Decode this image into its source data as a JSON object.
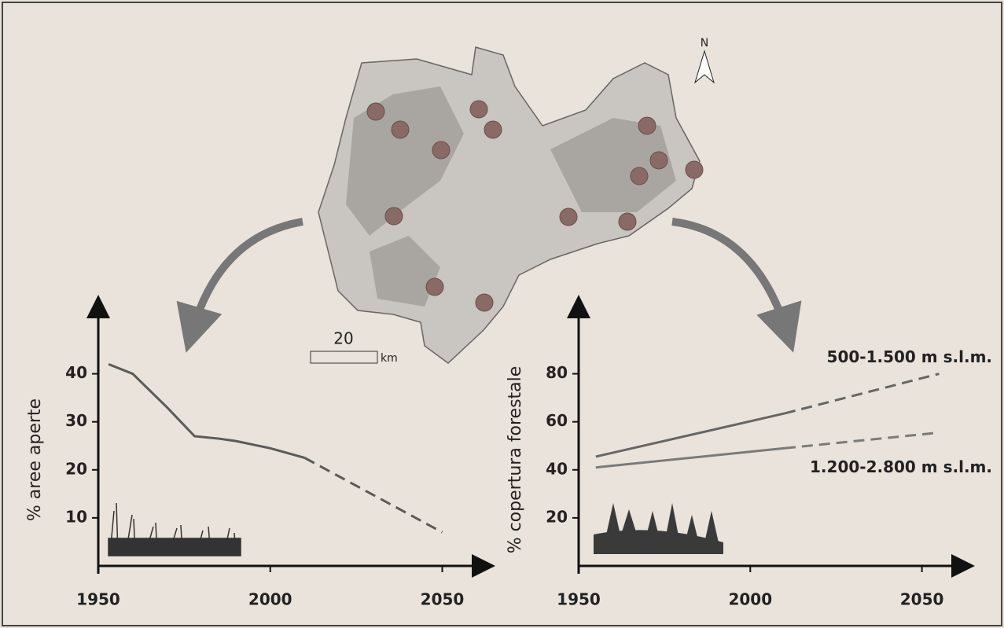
{
  "map": {
    "north": "N",
    "scale_value": "20",
    "scale_unit": "km"
  },
  "chart_data": [
    {
      "type": "line",
      "y_label": "% aree aperte",
      "x": [
        1953,
        1960,
        1970,
        1978,
        1985,
        1990,
        2000,
        2010,
        2050
      ],
      "xlim": [
        1950,
        2062
      ],
      "xticks": [
        1950,
        2000,
        2050
      ],
      "ylim": [
        0,
        54
      ],
      "yticks": [
        10,
        20,
        30,
        40
      ],
      "series": [
        {
          "color": "#5a5a5a",
          "values": [
            42,
            40,
            33,
            27,
            26.5,
            26,
            24.5,
            22.5,
            null
          ],
          "projection_values": [
            null,
            null,
            null,
            null,
            null,
            null,
            null,
            22.5,
            7
          ]
        }
      ]
    },
    {
      "type": "line",
      "y_label": "% copertura forestale",
      "x": [
        1955,
        2010,
        2055
      ],
      "xlim": [
        1950,
        2062
      ],
      "xticks": [
        1950,
        2000,
        2050
      ],
      "ylim": [
        0,
        108
      ],
      "yticks": [
        20,
        40,
        60,
        80
      ],
      "series": [
        {
          "name": "500-1.500 m s.l.m.",
          "color": "#666666",
          "values": [
            45.5,
            63.5,
            null
          ],
          "projection_values": [
            null,
            63.5,
            80
          ]
        },
        {
          "name": "1.200-2.800 m s.l.m.",
          "color": "#7a7a7a",
          "values": [
            41,
            49,
            null
          ],
          "projection_values": [
            null,
            49,
            55.5
          ]
        }
      ]
    }
  ]
}
